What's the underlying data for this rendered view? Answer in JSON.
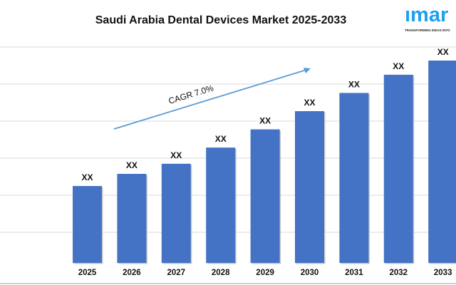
{
  "chart_data": {
    "type": "bar",
    "title": "Saudi Arabia Dental Devices Market 2025-2033",
    "categories": [
      "2025",
      "2026",
      "2027",
      "2028",
      "2029",
      "2030",
      "2031",
      "2032",
      "2033"
    ],
    "values": [
      38,
      44,
      49,
      57,
      66,
      75,
      84,
      93,
      100
    ],
    "data_labels": [
      "XX",
      "XX",
      "XX",
      "XX",
      "XX",
      "XX",
      "XX",
      "XX",
      "XX"
    ],
    "xlabel": "",
    "ylabel": "",
    "ylim": [
      0,
      100
    ],
    "grid": true,
    "annotation": "CAGR 7.0%",
    "bar_color": "#4472c4",
    "arrow_color": "#5b9bd5"
  },
  "logo": {
    "text": "imarc",
    "tagline": "TRANSFORMING IDEAS INTO IMPACT",
    "color": "#1ea0f0"
  }
}
